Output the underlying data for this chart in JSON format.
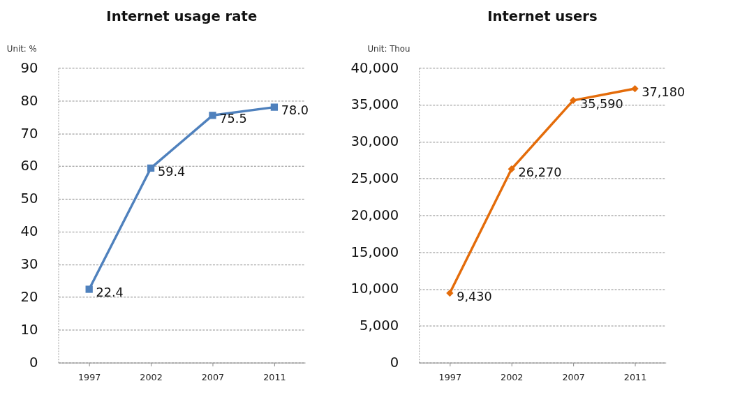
{
  "chart_data": [
    {
      "type": "line",
      "title": "Internet usage rate",
      "annotations": [
        "Unit: %"
      ],
      "categories": [
        "1997",
        "2002",
        "2007",
        "2011"
      ],
      "series": [
        {
          "color": "#4f81bd",
          "values": [
            22.4,
            59.4,
            75.5,
            78.0
          ],
          "value_labels": [
            "22.4",
            "59.4",
            "75.5",
            "78.0"
          ]
        }
      ],
      "ylim": [
        0,
        90
      ],
      "yticks": [
        0,
        10,
        20,
        30,
        40,
        50,
        60,
        70,
        80,
        90
      ],
      "grid": "y",
      "marker": "square",
      "line_style": "solid"
    },
    {
      "type": "line",
      "title": "Internet users",
      "annotations": [
        "Unit: Thou"
      ],
      "categories": [
        "1997",
        "2002",
        "2007",
        "2011"
      ],
      "series": [
        {
          "color": "#e46c0a",
          "values": [
            9430,
            26270,
            35590,
            37180
          ],
          "value_labels": [
            "9,430",
            "26,270",
            "35,590",
            "37,180"
          ]
        }
      ],
      "ylim": [
        0,
        40000
      ],
      "yticks": [
        0,
        {
          "value": 5000,
          "label": "5,000"
        },
        {
          "value": 10000,
          "label": "10,000"
        },
        {
          "value": 15000,
          "label": "15,000"
        },
        {
          "value": 20000,
          "label": "20,000"
        },
        {
          "value": 25000,
          "label": "25,000"
        },
        {
          "value": 30000,
          "label": "30,000"
        },
        {
          "value": 35000,
          "label": "35,000"
        },
        {
          "value": 40000,
          "label": "40,000"
        }
      ],
      "grid": "y",
      "marker": "diamond",
      "line_style": "solid"
    }
  ]
}
